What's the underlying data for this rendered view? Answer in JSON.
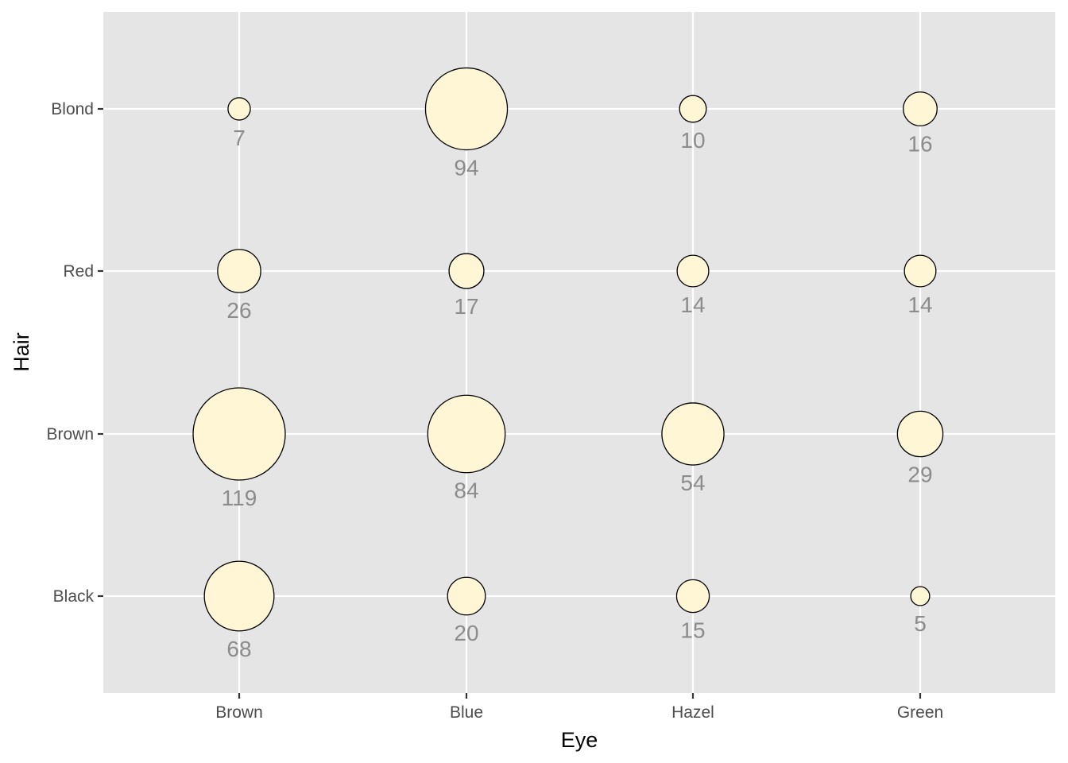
{
  "chart_data": {
    "type": "scatter",
    "subtype": "bubble",
    "title": "",
    "xlabel": "Eye",
    "ylabel": "Hair",
    "x_categories": [
      "Brown",
      "Blue",
      "Hazel",
      "Green"
    ],
    "y_categories": [
      "Black",
      "Brown",
      "Red",
      "Blond"
    ],
    "points": [
      {
        "eye": "Brown",
        "hair": "Black",
        "count": 68
      },
      {
        "eye": "Brown",
        "hair": "Brown",
        "count": 119
      },
      {
        "eye": "Brown",
        "hair": "Red",
        "count": 26
      },
      {
        "eye": "Brown",
        "hair": "Blond",
        "count": 7
      },
      {
        "eye": "Blue",
        "hair": "Black",
        "count": 20
      },
      {
        "eye": "Blue",
        "hair": "Brown",
        "count": 84
      },
      {
        "eye": "Blue",
        "hair": "Red",
        "count": 17
      },
      {
        "eye": "Blue",
        "hair": "Blond",
        "count": 94
      },
      {
        "eye": "Hazel",
        "hair": "Black",
        "count": 15
      },
      {
        "eye": "Hazel",
        "hair": "Brown",
        "count": 54
      },
      {
        "eye": "Hazel",
        "hair": "Red",
        "count": 14
      },
      {
        "eye": "Hazel",
        "hair": "Blond",
        "count": 10
      },
      {
        "eye": "Green",
        "hair": "Black",
        "count": 5
      },
      {
        "eye": "Green",
        "hair": "Brown",
        "count": 29
      },
      {
        "eye": "Green",
        "hair": "Red",
        "count": 14
      },
      {
        "eye": "Green",
        "hair": "Blond",
        "count": 16
      }
    ],
    "grid": true,
    "legend": "none",
    "colors": {
      "panel": "#e5e5e5",
      "gridline": "#ffffff",
      "bubble_fill": "#fff6d5",
      "bubble_stroke": "#000000",
      "label": "#8c8c8c"
    }
  }
}
